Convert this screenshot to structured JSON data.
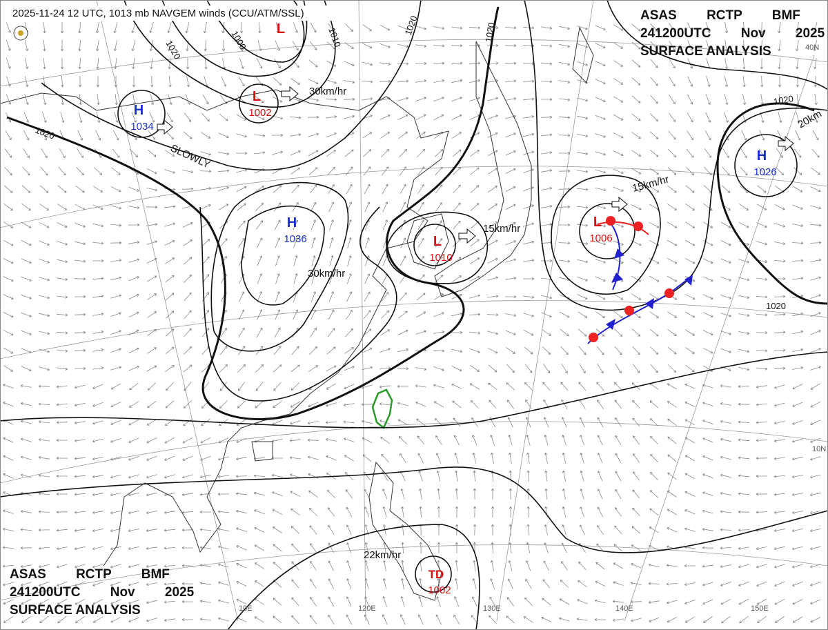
{
  "header": "2025-11-24 12 UTC, 1013 mb NAVGEM winds (CCU/ATM/SSL)",
  "top_right_block": {
    "line1": "ASAS RCTP BMF",
    "line2": "241200UTC Nov 2025",
    "line3": "SURFACE ANALYSIS"
  },
  "bottom_left_block": {
    "line1": "ASAS RCTP BMF",
    "line2": "241200UTC Nov 2025",
    "line3": "SURFACE ANALYSIS"
  },
  "centers": [
    {
      "symbol": "L"
    },
    {
      "symbol": "L",
      "pressure": "1002"
    },
    {
      "symbol": "H",
      "pressure": "1034"
    },
    {
      "symbol": "H",
      "pressure": "1036"
    },
    {
      "symbol": "L",
      "pressure": "1010"
    },
    {
      "symbol": "L",
      "pressure": "1006"
    },
    {
      "symbol": "H",
      "pressure": "1026"
    },
    {
      "symbol": "TD",
      "pressure": "1002"
    }
  ],
  "movement_labels": [
    "30km/hr",
    "SLOWLY",
    "30km/hr",
    "15km/hr",
    "15km/hr",
    "20km",
    "22km/hr"
  ],
  "isobar_labels": [
    "1000",
    "1020",
    "1020",
    "1020",
    "1020",
    "1020",
    "1020",
    "1010"
  ],
  "grid_labels": [
    "10E",
    "120E",
    "130E",
    "140E",
    "150E",
    "40N",
    "10N"
  ]
}
